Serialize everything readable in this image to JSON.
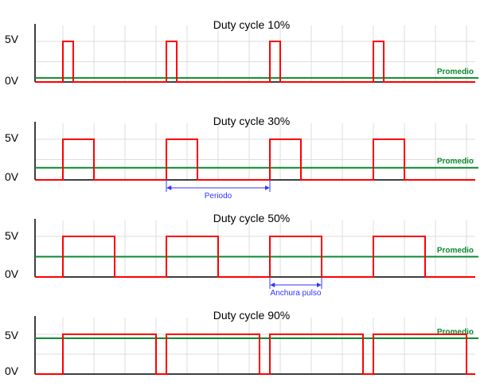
{
  "voltage_high_label": "5V",
  "voltage_low_label": "0V",
  "average_label": "Promedio",
  "colors": {
    "signal": "#ff0000",
    "average": "#0b8a2f",
    "dimension": "#3333ff",
    "grid": "#dddddd",
    "axis": "#000000"
  },
  "panels": [
    {
      "title": "Duty cycle 10%",
      "duty": 0.1
    },
    {
      "title": "Duty cycle 30%",
      "duty": 0.3,
      "dimension": {
        "label": "Periodo",
        "span": "period"
      }
    },
    {
      "title": "Duty cycle 50%",
      "duty": 0.5,
      "dimension": {
        "label": "Anchura pulso",
        "span": "pulse"
      }
    },
    {
      "title": "Duty cycle 90%",
      "duty": 0.9
    }
  ],
  "pulses_per_panel": 4
}
